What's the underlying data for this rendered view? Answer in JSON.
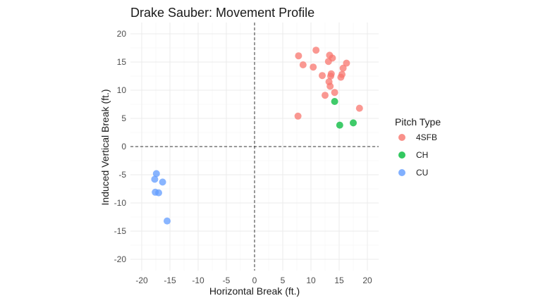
{
  "chart_data": {
    "type": "scatter",
    "title": "Drake Sauber: Movement Profile",
    "xlabel": "Horizontal Break (ft.)",
    "ylabel": "Induced Vertical Break (ft.)",
    "xlim": [
      -22,
      22
    ],
    "ylim": [
      -22,
      22
    ],
    "x_ticks": [
      -20,
      -15,
      -10,
      -5,
      0,
      5,
      10,
      15,
      20
    ],
    "y_ticks": [
      -20,
      -15,
      -10,
      -5,
      0,
      5,
      10,
      15,
      20
    ],
    "grid": true,
    "reference_lines": {
      "x": 0,
      "y": 0,
      "style": "dashed"
    },
    "legend": {
      "title": "Pitch Type",
      "position": "right"
    },
    "series": [
      {
        "name": "4SFB",
        "color": "#F8766D",
        "points": [
          [
            7.8,
            16.1
          ],
          [
            10.9,
            17.1
          ],
          [
            13.3,
            16.2
          ],
          [
            13.8,
            15.7
          ],
          [
            13.1,
            15.1
          ],
          [
            16.3,
            14.8
          ],
          [
            8.6,
            14.5
          ],
          [
            10.4,
            14.1
          ],
          [
            15.7,
            13.9
          ],
          [
            13.6,
            12.9
          ],
          [
            12.0,
            12.6
          ],
          [
            15.5,
            12.8
          ],
          [
            13.5,
            12.5
          ],
          [
            15.3,
            12.3
          ],
          [
            13.2,
            11.5
          ],
          [
            13.4,
            10.7
          ],
          [
            14.2,
            9.6
          ],
          [
            12.5,
            9.1
          ],
          [
            18.6,
            6.8
          ],
          [
            7.7,
            5.4
          ]
        ]
      },
      {
        "name": "CH",
        "color": "#00BA38",
        "points": [
          [
            14.2,
            8.0
          ],
          [
            15.1,
            3.8
          ],
          [
            17.5,
            4.2
          ]
        ]
      },
      {
        "name": "CU",
        "color": "#619CFF",
        "points": [
          [
            -17.4,
            -4.8
          ],
          [
            -17.7,
            -5.8
          ],
          [
            -16.3,
            -6.3
          ],
          [
            -17.6,
            -8.1
          ],
          [
            -17.0,
            -8.2
          ],
          [
            -15.5,
            -13.2
          ]
        ]
      }
    ]
  }
}
